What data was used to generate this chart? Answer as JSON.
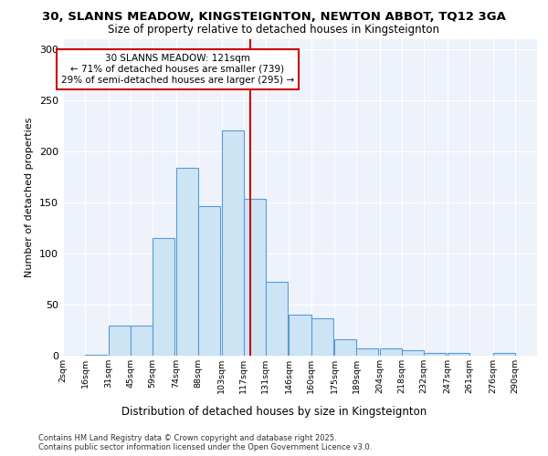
{
  "title1": "30, SLANNS MEADOW, KINGSTEIGNTON, NEWTON ABBOT, TQ12 3GA",
  "title2": "Size of property relative to detached houses in Kingsteignton",
  "xlabel": "Distribution of detached houses by size in Kingsteignton",
  "ylabel": "Number of detached properties",
  "footer1": "Contains HM Land Registry data © Crown copyright and database right 2025.",
  "footer2": "Contains public sector information licensed under the Open Government Licence v3.0.",
  "annotation_line1": "30 SLANNS MEADOW: 121sqm",
  "annotation_line2": "← 71% of detached houses are smaller (739)",
  "annotation_line3": "29% of semi-detached houses are larger (295) →",
  "property_size": 121,
  "bins_left": [
    2,
    16,
    31,
    45,
    59,
    74,
    88,
    103,
    117,
    131,
    146,
    160,
    175,
    189,
    204,
    218,
    232,
    247,
    261,
    276
  ],
  "bins_heights": [
    0,
    1,
    29,
    29,
    115,
    184,
    146,
    220,
    153,
    72,
    40,
    37,
    16,
    7,
    7,
    5,
    3,
    3,
    0,
    3
  ],
  "bin_width": 14,
  "bar_color": "#cde4f5",
  "bar_edge_color": "#5b9bd5",
  "red_line_color": "#cc0000",
  "annotation_box_color": "#cc0000",
  "background_color": "#eef2fb",
  "grid_color": "#ffffff",
  "ylim": [
    0,
    310
  ],
  "yticks": [
    0,
    50,
    100,
    150,
    200,
    250,
    300
  ],
  "xtick_labels": [
    "2sqm",
    "16sqm",
    "31sqm",
    "45sqm",
    "59sqm",
    "74sqm",
    "88sqm",
    "103sqm",
    "117sqm",
    "131sqm",
    "146sqm",
    "160sqm",
    "175sqm",
    "189sqm",
    "204sqm",
    "218sqm",
    "232sqm",
    "247sqm",
    "261sqm",
    "276sqm",
    "290sqm"
  ],
  "xtick_positions": [
    2,
    16,
    31,
    45,
    59,
    74,
    88,
    103,
    117,
    131,
    146,
    160,
    175,
    189,
    204,
    218,
    232,
    247,
    261,
    276,
    290
  ]
}
